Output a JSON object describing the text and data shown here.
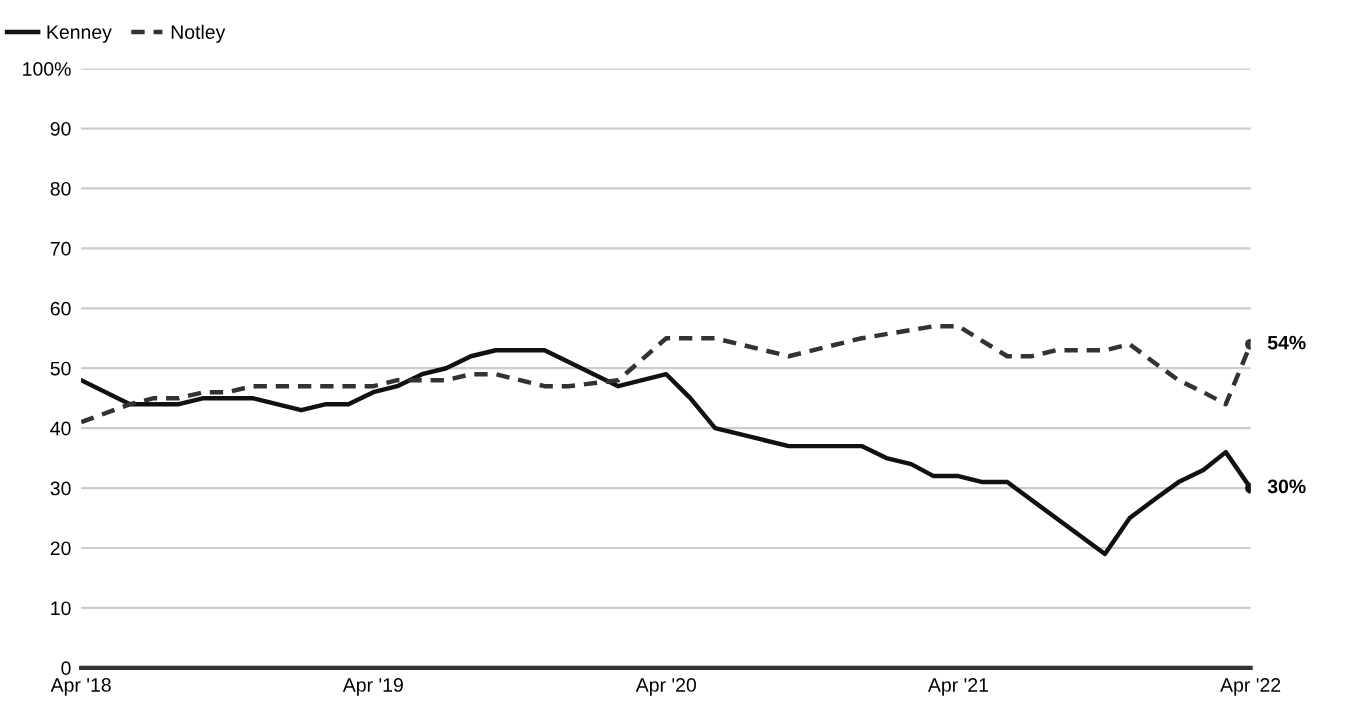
{
  "chart_data": {
    "type": "line",
    "xlim": [
      "2018-04",
      "2022-04"
    ],
    "xticks": [
      {
        "value": "2018-04",
        "label": "Apr '18"
      },
      {
        "value": "2019-04",
        "label": "Apr '19"
      },
      {
        "value": "2020-04",
        "label": "Apr '20"
      },
      {
        "value": "2021-04",
        "label": "Apr '21"
      },
      {
        "value": "2022-04",
        "label": "Apr '22"
      }
    ],
    "ylim": [
      0,
      100
    ],
    "yticks": [
      0,
      10,
      20,
      30,
      40,
      50,
      60,
      70,
      80,
      90,
      {
        "value": 100,
        "label": "100%"
      }
    ],
    "grid": "y",
    "legend": "top left",
    "marker": "none",
    "series": [
      {
        "name": "Kenney",
        "color": "#111111",
        "line_style": "solid",
        "x": [
          "2018-04",
          "2018-06",
          "2018-08",
          "2018-09",
          "2018-11",
          "2019-01",
          "2019-02",
          "2019-03",
          "2019-04",
          "2019-05",
          "2019-06",
          "2019-07",
          "2019-08",
          "2019-09",
          "2019-11",
          "2020-02",
          "2020-04",
          "2020-05",
          "2020-06",
          "2020-09",
          "2020-12",
          "2021-01",
          "2021-02",
          "2021-03",
          "2021-04",
          "2021-05",
          "2021-06",
          "2021-10",
          "2021-11",
          "2021-12",
          "2022-01",
          "2022-02",
          "2022-03",
          "2022-04"
        ],
        "values": [
          48,
          44,
          44,
          45,
          45,
          43,
          44,
          44,
          46,
          47,
          49,
          50,
          52,
          53,
          53,
          47,
          49,
          45,
          40,
          37,
          37,
          35,
          34,
          32,
          32,
          31,
          31,
          19,
          25,
          28,
          31,
          33,
          36,
          30
        ],
        "value_labels": [
          null,
          null,
          null,
          null,
          null,
          null,
          null,
          null,
          null,
          null,
          null,
          null,
          null,
          null,
          null,
          null,
          null,
          null,
          null,
          null,
          null,
          null,
          null,
          null,
          null,
          null,
          null,
          null,
          null,
          null,
          null,
          null,
          null,
          "30%"
        ]
      },
      {
        "name": "Notley",
        "color": "#333333",
        "line_style": "dashed",
        "x": [
          "2018-04",
          "2018-06",
          "2018-07",
          "2018-08",
          "2018-09",
          "2018-10",
          "2018-11",
          "2019-04",
          "2019-05",
          "2019-07",
          "2019-08",
          "2019-09",
          "2019-11",
          "2019-12",
          "2020-02",
          "2020-04",
          "2020-06",
          "2020-09",
          "2020-12",
          "2021-03",
          "2021-04",
          "2021-06",
          "2021-07",
          "2021-08",
          "2021-10",
          "2021-11",
          "2021-12",
          "2022-01",
          "2022-02",
          "2022-03",
          "2022-04"
        ],
        "values": [
          41,
          44,
          45,
          45,
          46,
          46,
          47,
          47,
          48,
          48,
          49,
          49,
          47,
          47,
          48,
          55,
          55,
          52,
          55,
          57,
          57,
          52,
          52,
          53,
          53,
          54,
          51,
          48,
          46,
          44,
          54
        ],
        "value_labels": [
          null,
          null,
          null,
          null,
          null,
          null,
          null,
          null,
          null,
          null,
          null,
          null,
          null,
          null,
          null,
          null,
          null,
          null,
          null,
          null,
          null,
          null,
          null,
          null,
          null,
          null,
          null,
          null,
          null,
          null,
          "54%"
        ]
      }
    ]
  }
}
